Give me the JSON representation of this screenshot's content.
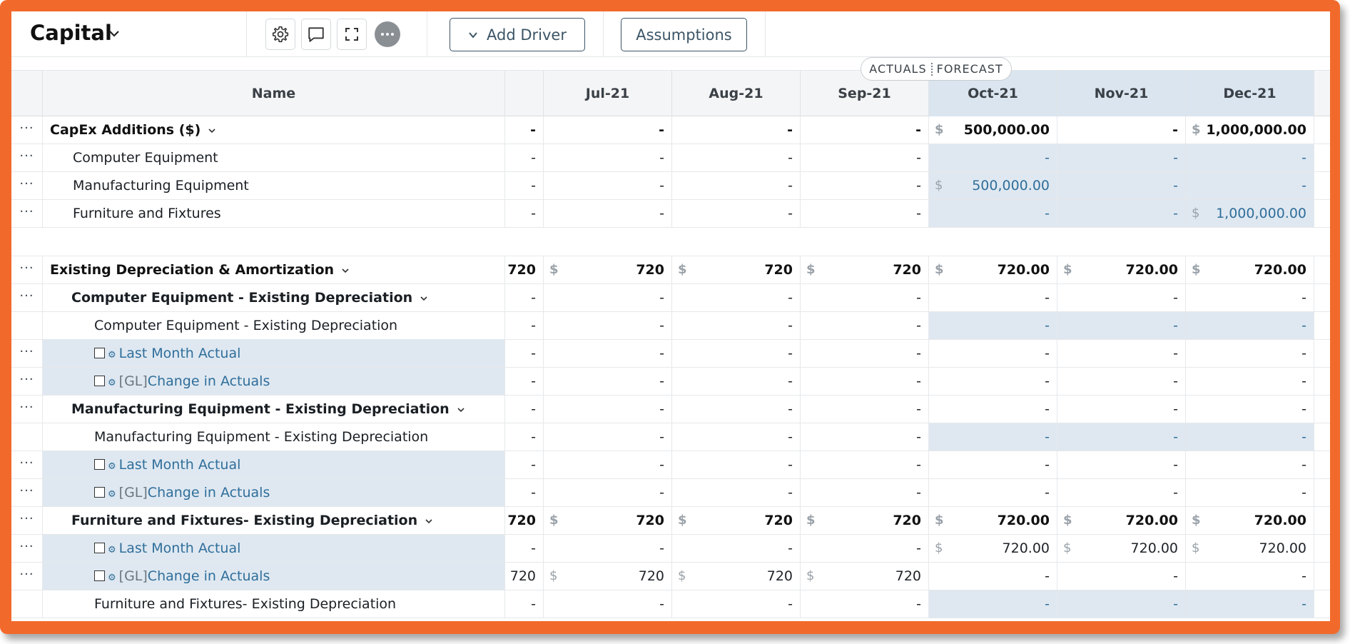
{
  "toolbar": {
    "title": "Capital",
    "add_driver_label": "Add Driver",
    "assumptions_label": "Assumptions",
    "icons": [
      "gear-icon",
      "comment-icon",
      "expand-icon",
      "more-icon"
    ]
  },
  "pill": {
    "actuals": "ACTUALS",
    "forecast": "FORECAST"
  },
  "columns": {
    "name": "Name",
    "months": [
      "Jul-21",
      "Aug-21",
      "Sep-21",
      "Oct-21",
      "Nov-21",
      "Dec-21"
    ],
    "forecast_start_index": 3
  },
  "rows": [
    {
      "name": "CapEx Additions ($)",
      "level": 0,
      "caret": true,
      "dots": true,
      "bold": true,
      "first": "-",
      "vals": [
        "-",
        "-",
        "-",
        "$|500,000.00",
        "-",
        "$|1,000,000.00"
      ],
      "blue": false,
      "fc_fill": false
    },
    {
      "name": "Computer Equipment",
      "level": 1,
      "dots": true,
      "first": "-",
      "vals": [
        "-",
        "-",
        "-",
        "-",
        "-",
        "-"
      ],
      "blue": true,
      "fc_fill": true
    },
    {
      "name": "Manufacturing Equipment",
      "level": 1,
      "dots": true,
      "first": "-",
      "vals": [
        "-",
        "-",
        "-",
        "$|500,000.00",
        "-",
        "-"
      ],
      "blue": true,
      "fc_fill": true
    },
    {
      "name": "Furniture and Fixtures",
      "level": 1,
      "dots": true,
      "first": "-",
      "vals": [
        "-",
        "-",
        "-",
        "-",
        "-",
        "$|1,000,000.00"
      ],
      "blue": true,
      "fc_fill": true
    },
    {
      "spacer": true
    },
    {
      "name": "Existing Depreciation & Amortization",
      "level": 0,
      "caret": true,
      "dots": true,
      "bold": true,
      "first": "720",
      "vals": [
        "$|720",
        "$|720",
        "$|720",
        "$|720.00",
        "$|720.00",
        "$|720.00"
      ],
      "blue": false,
      "fc_fill": false
    },
    {
      "name": "Computer Equipment - Existing Depreciation",
      "level": 1.5,
      "caret": true,
      "dots": true,
      "first": "-",
      "vals": [
        "-",
        "-",
        "-",
        "-",
        "-",
        "-"
      ],
      "blue": false,
      "fc_fill": false
    },
    {
      "name": "Computer Equipment - Existing Depreciation",
      "level": 2,
      "dots": false,
      "first": "-",
      "vals": [
        "-",
        "-",
        "-",
        "-",
        "-",
        "-"
      ],
      "blue": true,
      "fc_fill": true
    },
    {
      "name": "Last Month Actual",
      "driver": true,
      "gl": false,
      "dots": true,
      "first": "-",
      "vals": [
        "-",
        "-",
        "-",
        "-",
        "-",
        "-"
      ],
      "blue": false,
      "fc_fill": false
    },
    {
      "name": "Change in Actuals",
      "driver": true,
      "gl": true,
      "gl_label": "[GL]",
      "dots": true,
      "first": "-",
      "vals": [
        "-",
        "-",
        "-",
        "-",
        "-",
        "-"
      ],
      "blue": false,
      "fc_fill": false
    },
    {
      "name": "Manufacturing Equipment - Existing Depreciation",
      "level": 1.5,
      "caret": true,
      "dots": true,
      "first": "-",
      "vals": [
        "-",
        "-",
        "-",
        "-",
        "-",
        "-"
      ],
      "blue": false,
      "fc_fill": false
    },
    {
      "name": "Manufacturing Equipment - Existing Depreciation",
      "level": 2,
      "dots": false,
      "first": "-",
      "vals": [
        "-",
        "-",
        "-",
        "-",
        "-",
        "-"
      ],
      "blue": true,
      "fc_fill": true
    },
    {
      "name": "Last Month Actual",
      "driver": true,
      "gl": false,
      "dots": true,
      "first": "-",
      "vals": [
        "-",
        "-",
        "-",
        "-",
        "-",
        "-"
      ],
      "blue": false,
      "fc_fill": false
    },
    {
      "name": "Change in Actuals",
      "driver": true,
      "gl": true,
      "gl_label": "[GL]",
      "dots": true,
      "first": "-",
      "vals": [
        "-",
        "-",
        "-",
        "-",
        "-",
        "-"
      ],
      "blue": false,
      "fc_fill": false
    },
    {
      "name": "Furniture and Fixtures- Existing Depreciation",
      "level": 1.5,
      "caret": true,
      "dots": true,
      "first": "720",
      "vals": [
        "$|720",
        "$|720",
        "$|720",
        "$|720.00",
        "$|720.00",
        "$|720.00"
      ],
      "blue": false,
      "fc_fill": false,
      "bold": true
    },
    {
      "name": "Last Month Actual",
      "driver": true,
      "gl": false,
      "dots": true,
      "first": "-",
      "vals": [
        "-",
        "-",
        "-",
        "$|720.00",
        "$|720.00",
        "$|720.00"
      ],
      "blue": false,
      "fc_fill": false
    },
    {
      "name": "Change in Actuals",
      "driver": true,
      "gl": true,
      "gl_label": "[GL]",
      "dots": true,
      "first": "720",
      "vals": [
        "$|720",
        "$|720",
        "$|720",
        "-",
        "-",
        "-"
      ],
      "blue": false,
      "fc_fill": false
    },
    {
      "name": "Furniture and Fixtures- Existing Depreciation",
      "level": 2,
      "dots": false,
      "first": "-",
      "vals": [
        "-",
        "-",
        "-",
        "-",
        "-",
        "-"
      ],
      "blue": true,
      "fc_fill": true
    }
  ]
}
